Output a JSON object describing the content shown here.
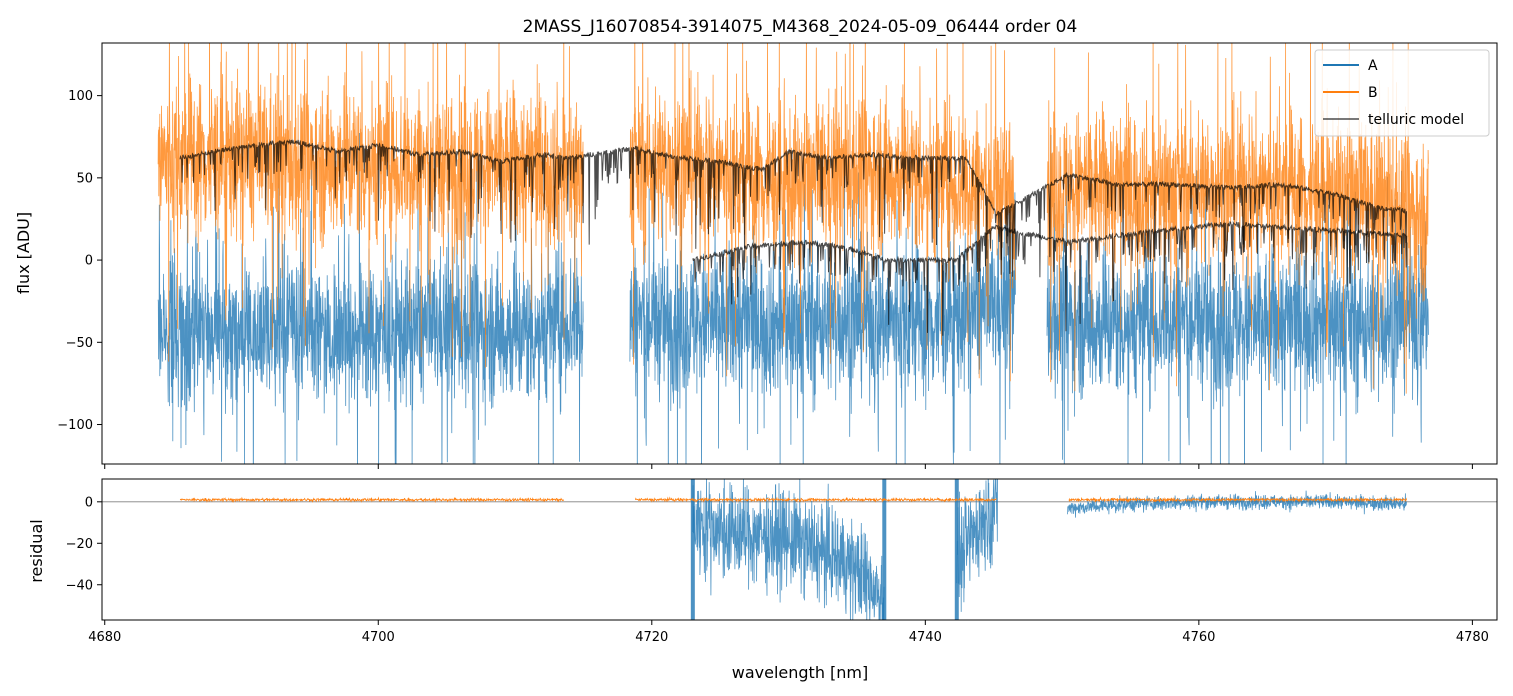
{
  "chart_data": [
    {
      "type": "line",
      "title": "2MASS_J16070854-3914075_M4368_2024-05-09_06444  order 04",
      "xlabel": "",
      "ylabel": "flux [ADU]",
      "xlim": [
        4679.8,
        4781.8
      ],
      "ylim": [
        -124,
        132
      ],
      "yticks": [
        -100,
        -50,
        0,
        50,
        100
      ],
      "yticklabels": [
        "−100",
        "−50",
        "0",
        "50",
        "100"
      ],
      "colors": {
        "A": "#1f77b4",
        "B": "#ff7f0e",
        "telluric model": "#000000"
      },
      "legend": {
        "placement": "top-right",
        "entries": [
          "A",
          "B",
          "telluric model"
        ]
      },
      "segments": [
        [
          4683.9,
          4715.0
        ],
        [
          4718.4,
          4746.6
        ],
        [
          4748.9,
          4776.8
        ]
      ],
      "series": [
        {
          "name": "A",
          "values": [
            [
              4684.0,
              -40
            ],
            [
              4690,
              -45
            ],
            [
              4695,
              -40
            ],
            [
              4700,
              -45
            ],
            [
              4705,
              -40
            ],
            [
              4710,
              -45
            ],
            [
              4715.0,
              -35
            ],
            [
              4718.4,
              -35
            ],
            [
              4722,
              -40
            ],
            [
              4726,
              -35
            ],
            [
              4730,
              -40
            ],
            [
              4735,
              -35
            ],
            [
              4740,
              -40
            ],
            [
              4746.5,
              -25
            ],
            [
              4749.0,
              -35
            ],
            [
              4753,
              -40
            ],
            [
              4758,
              -35
            ],
            [
              4763,
              -40
            ],
            [
              4768,
              -35
            ],
            [
              4772,
              -40
            ],
            [
              4776.8,
              -30
            ]
          ]
        },
        {
          "name": "B",
          "values": [
            [
              4684.0,
              60
            ],
            [
              4690,
              62
            ],
            [
              4695,
              58
            ],
            [
              4700,
              60
            ],
            [
              4705,
              55
            ],
            [
              4710,
              58
            ],
            [
              4715.0,
              52
            ],
            [
              4718.4,
              55
            ],
            [
              4722,
              60
            ],
            [
              4726,
              50
            ],
            [
              4730,
              45
            ],
            [
              4735,
              55
            ],
            [
              4740,
              50
            ],
            [
              4746.5,
              40
            ],
            [
              4749.0,
              40
            ],
            [
              4753,
              45
            ],
            [
              4758,
              42
            ],
            [
              4763,
              45
            ],
            [
              4768,
              40
            ],
            [
              4772,
              38
            ],
            [
              4776.8,
              25
            ]
          ]
        },
        {
          "name": "telluric model",
          "values": [
            [
              4685.5,
              62
            ],
            [
              4688,
              66
            ],
            [
              4691,
              70
            ],
            [
              4694,
              72
            ],
            [
              4697,
              66
            ],
            [
              4700,
              70
            ],
            [
              4703,
              64
            ],
            [
              4706,
              66
            ],
            [
              4709,
              60
            ],
            [
              4712,
              64
            ],
            [
              4713.7,
              62
            ],
            [
              4718.8,
              68
            ],
            [
              4722,
              62
            ],
            [
              4725,
              60
            ],
            [
              4728,
              55
            ],
            [
              4730,
              66
            ],
            [
              4733,
              62
            ],
            [
              4736,
              64
            ],
            [
              4740,
              62
            ],
            [
              4743,
              62
            ],
            [
              4745.2,
              28
            ],
            [
              4750.5,
              52
            ],
            [
              4754,
              46
            ],
            [
              4758,
              46
            ],
            [
              4762,
              44
            ],
            [
              4766,
              46
            ],
            [
              4770,
              40
            ],
            [
              4773,
              32
            ],
            [
              4775.2,
              30
            ],
            [
              4723.0,
              0
            ],
            [
              4727,
              8
            ],
            [
              4731,
              11
            ],
            [
              4734,
              8
            ],
            [
              4737.2,
              0
            ],
            [
              4742.2,
              0
            ],
            [
              4745.0,
              20
            ],
            [
              4750.5,
              11
            ],
            [
              4756,
              17
            ],
            [
              4762,
              22
            ],
            [
              4768,
              19
            ],
            [
              4775.2,
              15
            ]
          ]
        }
      ]
    },
    {
      "type": "line",
      "title": "",
      "xlabel": "wavelength [nm]",
      "ylabel": "residual",
      "xlim": [
        4679.8,
        4781.8
      ],
      "ylim": [
        -57,
        11
      ],
      "xticks": [
        4680,
        4700,
        4720,
        4740,
        4760,
        4780
      ],
      "xticklabels": [
        "4680",
        "4700",
        "4720",
        "4740",
        "4760",
        "4780"
      ],
      "yticks": [
        -40,
        -20,
        0
      ],
      "yticklabels": [
        "−40",
        "−20",
        "0"
      ],
      "series": [
        {
          "name": "A",
          "values": [
            [
              4723.0,
              -10
            ],
            [
              4726,
              -15
            ],
            [
              4730,
              -18
            ],
            [
              4734,
              -28
            ],
            [
              4737.0,
              -45
            ],
            [
              4742.3,
              -30
            ],
            [
              4744,
              -10
            ],
            [
              4745.3,
              -2
            ],
            [
              4750.4,
              -3
            ],
            [
              4755,
              -1
            ],
            [
              4760,
              0
            ],
            [
              4765,
              0
            ],
            [
              4770,
              0
            ],
            [
              4775.2,
              -1
            ]
          ]
        },
        {
          "name": "B",
          "values": [
            [
              4685.5,
              1
            ],
            [
              4700,
              1
            ],
            [
              4713.6,
              1
            ],
            [
              4718.8,
              1
            ],
            [
              4730,
              1
            ],
            [
              4745.2,
              1
            ],
            [
              4750.5,
              1
            ],
            [
              4760,
              1
            ],
            [
              4775.2,
              1
            ]
          ]
        }
      ]
    }
  ]
}
